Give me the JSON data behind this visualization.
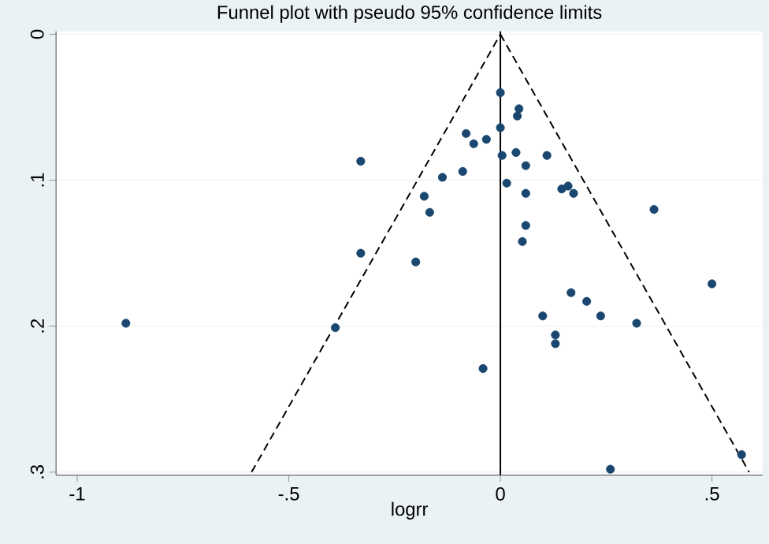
{
  "chart_data": {
    "type": "scatter",
    "title": "Funnel plot with pseudo 95% confidence limits",
    "xlabel": "logrr",
    "xlim": [
      -1.05,
      0.62
    ],
    "ylim": [
      0.302,
      -0.002
    ],
    "xticks": [
      {
        "value": -1,
        "label": "-1"
      },
      {
        "value": -0.5,
        "label": "-.5"
      },
      {
        "value": 0,
        "label": "0"
      },
      {
        "value": 0.5,
        "label": ".5"
      }
    ],
    "yticks": [
      {
        "value": 0,
        "label": "0"
      },
      {
        "value": 0.1,
        "label": ".1"
      },
      {
        "value": 0.2,
        "label": ".2"
      },
      {
        "value": 0.3,
        "label": ".3"
      }
    ],
    "grid": "y",
    "ref_lines": [
      {
        "axis": "x",
        "value": 0,
        "color": "#000000",
        "line_style": "solid"
      }
    ],
    "series": [
      {
        "color": "#1a476f",
        "marker": "circle",
        "x": [
          -0.885,
          -0.33,
          -0.33,
          -0.2,
          -0.18,
          -0.167,
          -0.137,
          -0.089,
          -0.081,
          -0.063,
          -0.033,
          0.0,
          0.0,
          0.004,
          0.015,
          0.037,
          0.04,
          0.044,
          0.06,
          0.06,
          0.06,
          0.052,
          0.11,
          0.145,
          0.16,
          0.173,
          0.363,
          0.5,
          0.167,
          0.204,
          0.1,
          0.237,
          0.322,
          0.13,
          0.13,
          -0.041,
          0.26,
          0.57,
          -0.39
        ],
        "values": [
          0.198,
          0.087,
          0.15,
          0.156,
          0.111,
          0.122,
          0.098,
          0.094,
          0.068,
          0.075,
          0.072,
          0.04,
          0.064,
          0.083,
          0.102,
          0.081,
          0.056,
          0.051,
          0.09,
          0.109,
          0.131,
          0.142,
          0.083,
          0.106,
          0.104,
          0.109,
          0.12,
          0.171,
          0.177,
          0.183,
          0.193,
          0.193,
          0.198,
          0.206,
          0.212,
          0.229,
          0.298,
          0.288,
          0.201
        ]
      },
      {
        "type": "line",
        "color": "#000000",
        "line_style": "dashed",
        "marker": "none",
        "x": [
          -0.588,
          0
        ],
        "values": [
          0.3,
          0
        ]
      },
      {
        "type": "line",
        "color": "#000000",
        "line_style": "dashed",
        "marker": "none",
        "x": [
          0,
          0.588
        ],
        "values": [
          0,
          0.3
        ]
      }
    ]
  }
}
